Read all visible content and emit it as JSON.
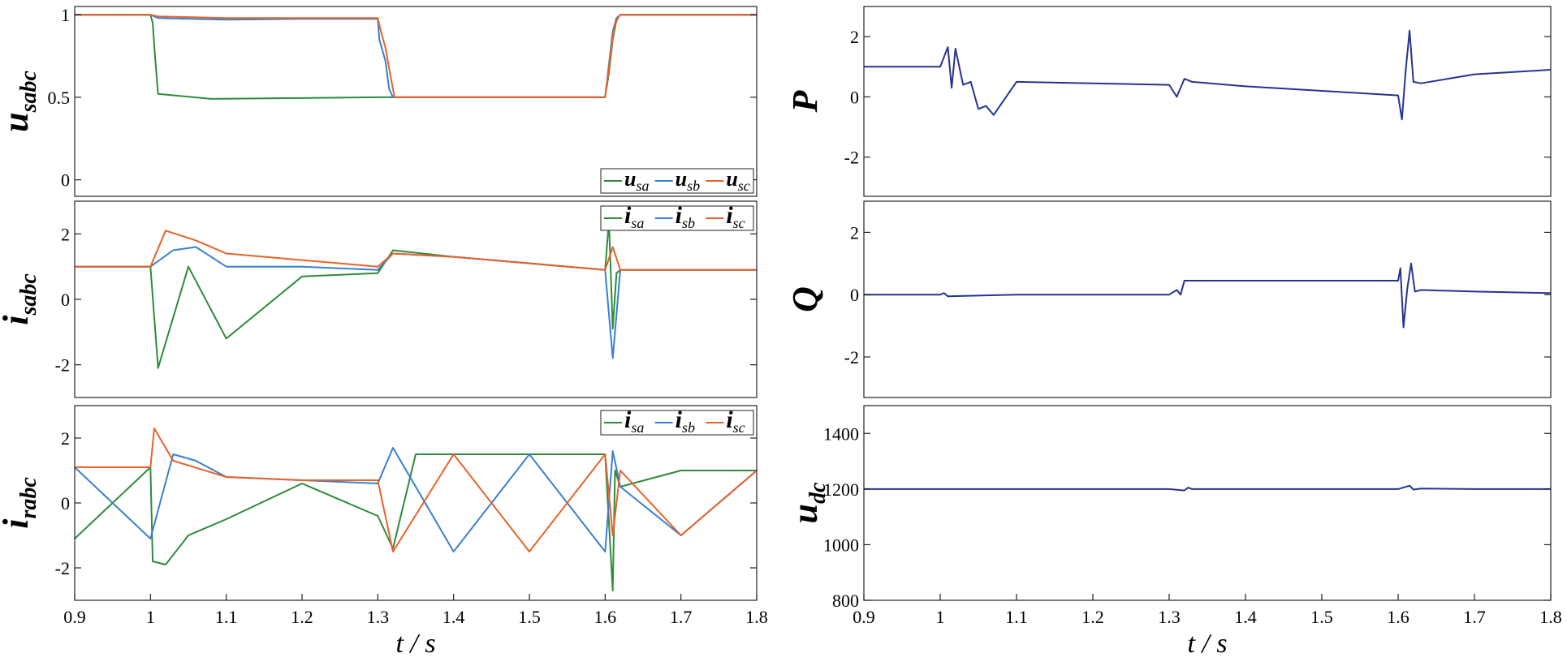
{
  "chart_data": [
    {
      "id": "usabc",
      "type": "line",
      "ylabel": "u",
      "ylabel_sub": "sabc",
      "xlim": [
        0.9,
        1.8
      ],
      "ylim": [
        -0.1,
        1.05
      ],
      "yticks": [
        0,
        0.5,
        1
      ],
      "ytick_labels": [
        "0",
        "0.5",
        "1"
      ],
      "xticks": [],
      "xtick_labels": [],
      "xlabel": "",
      "legend": {
        "position": "bottom-right",
        "entries": [
          {
            "main": "u",
            "sub": "sa",
            "color": "#2e8b3a"
          },
          {
            "main": "u",
            "sub": "sb",
            "color": "#3a7fd0"
          },
          {
            "main": "u",
            "sub": "sc",
            "color": "#e8622a"
          }
        ]
      },
      "series": [
        {
          "name": "usa",
          "color": "#2e8b3a",
          "x": [
            0.9,
            1.0,
            1.003,
            1.006,
            1.01,
            1.08,
            1.3,
            1.32,
            1.6,
            1.605,
            1.61,
            1.615,
            1.62,
            1.8
          ],
          "y": [
            1.0,
            1.0,
            0.95,
            0.75,
            0.52,
            0.49,
            0.5,
            0.5,
            0.5,
            0.65,
            0.85,
            0.97,
            1.0,
            1.0
          ]
        },
        {
          "name": "usb",
          "color": "#3a7fd0",
          "x": [
            0.9,
            1.0,
            1.01,
            1.1,
            1.2,
            1.3,
            1.302,
            1.31,
            1.315,
            1.32,
            1.6,
            1.605,
            1.61,
            1.615,
            1.62,
            1.8
          ],
          "y": [
            1.0,
            1.0,
            0.98,
            0.97,
            0.975,
            0.975,
            0.85,
            0.72,
            0.55,
            0.5,
            0.5,
            0.7,
            0.9,
            0.98,
            1.0,
            1.0
          ]
        },
        {
          "name": "usc",
          "color": "#e8622a",
          "x": [
            0.9,
            1.0,
            1.01,
            1.1,
            1.2,
            1.3,
            1.304,
            1.31,
            1.318,
            1.322,
            1.6,
            1.606,
            1.612,
            1.618,
            1.62,
            1.8
          ],
          "y": [
            1.0,
            1.0,
            0.99,
            0.98,
            0.98,
            0.98,
            0.9,
            0.8,
            0.6,
            0.5,
            0.5,
            0.72,
            0.93,
            0.99,
            1.0,
            1.0
          ]
        }
      ]
    },
    {
      "id": "isabc",
      "type": "line",
      "ylabel": "i",
      "ylabel_sub": "sabc",
      "xlim": [
        0.9,
        1.8
      ],
      "ylim": [
        -3,
        3
      ],
      "yticks": [
        -2,
        0,
        2
      ],
      "ytick_labels": [
        "-2",
        "0",
        "2"
      ],
      "xticks": [],
      "xtick_labels": [],
      "xlabel": "",
      "legend": {
        "position": "top-right",
        "entries": [
          {
            "main": "i",
            "sub": "sa",
            "color": "#2e8b3a"
          },
          {
            "main": "i",
            "sub": "sb",
            "color": "#3a7fd0"
          },
          {
            "main": "i",
            "sub": "sc",
            "color": "#e8622a"
          }
        ]
      },
      "series": [
        {
          "name": "isa",
          "color": "#2e8b3a",
          "x": [
            0.9,
            0.95,
            1.0,
            1.01,
            1.05,
            1.1,
            1.2,
            1.3,
            1.32,
            1.4,
            1.5,
            1.6,
            1.605,
            1.61,
            1.615,
            1.62,
            1.7,
            1.8
          ],
          "y": [
            1.0,
            1.0,
            1.0,
            -2.1,
            1.0,
            -1.2,
            0.7,
            0.8,
            1.5,
            1.3,
            1.1,
            0.9,
            2.4,
            -0.9,
            0.8,
            0.9,
            0.9,
            0.9
          ]
        },
        {
          "name": "isb",
          "color": "#3a7fd0",
          "x": [
            0.9,
            1.0,
            1.03,
            1.06,
            1.1,
            1.2,
            1.3,
            1.32,
            1.4,
            1.5,
            1.6,
            1.61,
            1.62,
            1.8
          ],
          "y": [
            1.0,
            1.0,
            1.5,
            1.6,
            1.0,
            1.0,
            0.9,
            1.4,
            1.3,
            1.1,
            0.9,
            -1.8,
            0.9,
            0.9
          ]
        },
        {
          "name": "isc",
          "color": "#e8622a",
          "x": [
            0.9,
            1.0,
            1.02,
            1.06,
            1.1,
            1.2,
            1.3,
            1.32,
            1.4,
            1.5,
            1.6,
            1.61,
            1.62,
            1.8
          ],
          "y": [
            1.0,
            1.0,
            2.1,
            1.8,
            1.4,
            1.2,
            1.0,
            1.4,
            1.3,
            1.1,
            0.9,
            1.6,
            0.9,
            0.9
          ]
        }
      ]
    },
    {
      "id": "irabc",
      "type": "line",
      "ylabel": "i",
      "ylabel_sub": "rabc",
      "xlim": [
        0.9,
        1.8
      ],
      "ylim": [
        -3,
        3
      ],
      "yticks": [
        -2,
        0,
        2
      ],
      "ytick_labels": [
        "-2",
        "0",
        "2"
      ],
      "xticks": [
        0.9,
        1.0,
        1.1,
        1.2,
        1.3,
        1.4,
        1.5,
        1.6,
        1.7,
        1.8
      ],
      "xtick_labels": [
        "0.9",
        "1",
        "1.1",
        "1.2",
        "1.3",
        "1.4",
        "1.5",
        "1.6",
        "1.7",
        "1.8"
      ],
      "xlabel": "t / s",
      "legend": {
        "position": "top-right",
        "entries": [
          {
            "main": "i",
            "sub": "sa",
            "color": "#2e8b3a"
          },
          {
            "main": "i",
            "sub": "sb",
            "color": "#3a7fd0"
          },
          {
            "main": "i",
            "sub": "sc",
            "color": "#e8622a"
          }
        ]
      },
      "series": [
        {
          "name": "ira",
          "color": "#2e8b3a",
          "x": [
            0.9,
            1.0,
            1.003,
            1.02,
            1.05,
            1.1,
            1.2,
            1.3,
            1.32,
            1.35,
            1.4,
            1.5,
            1.6,
            1.61,
            1.613,
            1.62,
            1.7,
            1.8
          ],
          "y": [
            -1.1,
            1.1,
            -1.8,
            -1.9,
            -1.0,
            -0.5,
            0.6,
            -0.4,
            -1.4,
            1.5,
            1.5,
            1.5,
            1.5,
            -2.7,
            1.0,
            0.5,
            1.0,
            1.0
          ]
        },
        {
          "name": "irb",
          "color": "#3a7fd0",
          "x": [
            0.9,
            1.0,
            1.03,
            1.06,
            1.1,
            1.2,
            1.3,
            1.32,
            1.4,
            1.5,
            1.6,
            1.61,
            1.62,
            1.7,
            1.8
          ],
          "y": [
            1.1,
            -1.1,
            1.5,
            1.3,
            0.8,
            0.7,
            0.6,
            1.7,
            -1.5,
            1.5,
            -1.5,
            1.6,
            0.5,
            -1.0,
            1.0
          ]
        },
        {
          "name": "irc",
          "color": "#e8622a",
          "x": [
            0.9,
            1.0,
            1.005,
            1.03,
            1.1,
            1.2,
            1.3,
            1.32,
            1.4,
            1.5,
            1.6,
            1.61,
            1.62,
            1.7,
            1.8
          ],
          "y": [
            1.1,
            1.1,
            2.3,
            1.3,
            0.8,
            0.7,
            0.7,
            -1.5,
            1.5,
            -1.5,
            1.5,
            -1.0,
            1.0,
            -1.0,
            1.0
          ]
        }
      ]
    },
    {
      "id": "P",
      "type": "line",
      "ylabel": "P",
      "ylabel_sub": "",
      "xlim": [
        0.9,
        1.8
      ],
      "ylim": [
        -3.3,
        3.0
      ],
      "yticks": [
        -2,
        0,
        2
      ],
      "ytick_labels": [
        "-2",
        "0",
        "2"
      ],
      "xticks": [],
      "xtick_labels": [],
      "xlabel": "",
      "series": [
        {
          "name": "P",
          "color": "#27338f",
          "x": [
            0.9,
            1.0,
            1.01,
            1.015,
            1.02,
            1.03,
            1.04,
            1.05,
            1.06,
            1.07,
            1.1,
            1.2,
            1.3,
            1.31,
            1.32,
            1.33,
            1.4,
            1.5,
            1.6,
            1.605,
            1.61,
            1.615,
            1.62,
            1.63,
            1.7,
            1.8
          ],
          "y": [
            1.0,
            1.0,
            1.65,
            0.3,
            1.6,
            0.4,
            0.5,
            -0.4,
            -0.3,
            -0.6,
            0.5,
            0.45,
            0.4,
            0.0,
            0.6,
            0.5,
            0.35,
            0.2,
            0.05,
            -0.75,
            0.9,
            2.2,
            0.5,
            0.45,
            0.75,
            0.9
          ]
        }
      ]
    },
    {
      "id": "Q",
      "type": "line",
      "ylabel": "Q",
      "ylabel_sub": "",
      "xlim": [
        0.9,
        1.8
      ],
      "ylim": [
        -3.3,
        3.0
      ],
      "yticks": [
        -2,
        0,
        2
      ],
      "ytick_labels": [
        "-2",
        "0",
        "2"
      ],
      "xticks": [],
      "xtick_labels": [],
      "xlabel": "",
      "series": [
        {
          "name": "Q",
          "color": "#27338f",
          "x": [
            0.9,
            1.0,
            1.005,
            1.01,
            1.1,
            1.3,
            1.31,
            1.315,
            1.32,
            1.33,
            1.5,
            1.6,
            1.603,
            1.607,
            1.612,
            1.617,
            1.622,
            1.63,
            1.7,
            1.8
          ],
          "y": [
            0.0,
            0.0,
            0.05,
            -0.05,
            0.0,
            0.0,
            0.15,
            0.0,
            0.45,
            0.45,
            0.45,
            0.45,
            0.85,
            -1.05,
            0.2,
            1.0,
            0.1,
            0.15,
            0.1,
            0.05
          ]
        }
      ]
    },
    {
      "id": "udc",
      "type": "line",
      "ylabel": "u",
      "ylabel_sub": "dc",
      "xlim": [
        0.9,
        1.8
      ],
      "ylim": [
        800,
        1500
      ],
      "yticks": [
        800,
        1000,
        1200,
        1400
      ],
      "ytick_labels": [
        "800",
        "1000",
        "1200",
        "1400"
      ],
      "xticks": [
        0.9,
        1.0,
        1.1,
        1.2,
        1.3,
        1.4,
        1.5,
        1.6,
        1.7,
        1.8
      ],
      "xtick_labels": [
        "0.9",
        "1",
        "1.1",
        "1.2",
        "1.3",
        "1.4",
        "1.5",
        "1.6",
        "1.7",
        "1.8"
      ],
      "xlabel": "t / s",
      "series": [
        {
          "name": "udc",
          "color": "#27338f",
          "x": [
            0.9,
            1.3,
            1.32,
            1.325,
            1.33,
            1.6,
            1.615,
            1.62,
            1.63,
            1.7,
            1.8
          ],
          "y": [
            1200,
            1200,
            1195,
            1205,
            1200,
            1200,
            1212,
            1198,
            1202,
            1200,
            1200
          ]
        }
      ]
    }
  ]
}
